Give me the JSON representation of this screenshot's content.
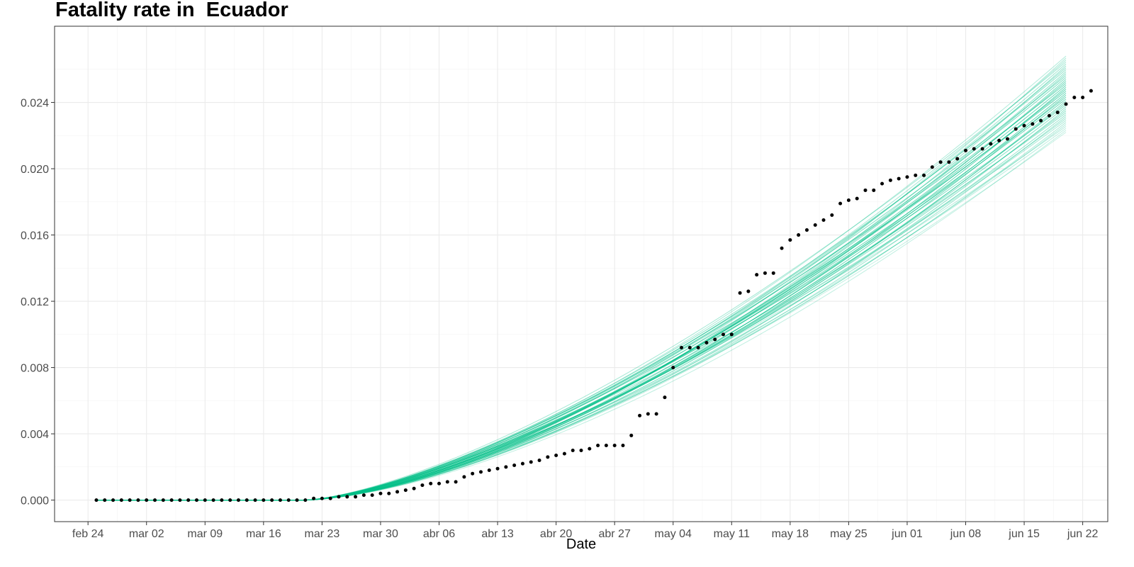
{
  "chart_data": {
    "type": "line",
    "title": "Fatality rate in  Ecuador",
    "xlabel": "Date",
    "ylabel": "",
    "x_domain": [
      "2020-02-20",
      "2020-06-25"
    ],
    "ylim": [
      -0.0013,
      0.0286
    ],
    "x_ticks": [
      {
        "date": "2020-02-24",
        "label": "feb 24"
      },
      {
        "date": "2020-03-02",
        "label": "mar 02"
      },
      {
        "date": "2020-03-09",
        "label": "mar 09"
      },
      {
        "date": "2020-03-16",
        "label": "mar 16"
      },
      {
        "date": "2020-03-23",
        "label": "mar 23"
      },
      {
        "date": "2020-03-30",
        "label": "mar 30"
      },
      {
        "date": "2020-04-06",
        "label": "abr 06"
      },
      {
        "date": "2020-04-13",
        "label": "abr 13"
      },
      {
        "date": "2020-04-20",
        "label": "abr 20"
      },
      {
        "date": "2020-04-27",
        "label": "abr 27"
      },
      {
        "date": "2020-05-04",
        "label": "may 04"
      },
      {
        "date": "2020-05-11",
        "label": "may 11"
      },
      {
        "date": "2020-05-18",
        "label": "may 18"
      },
      {
        "date": "2020-05-25",
        "label": "may 25"
      },
      {
        "date": "2020-06-01",
        "label": "jun 01"
      },
      {
        "date": "2020-06-08",
        "label": "jun 08"
      },
      {
        "date": "2020-06-15",
        "label": "jun 15"
      },
      {
        "date": "2020-06-22",
        "label": "jun 22"
      }
    ],
    "y_ticks": [
      {
        "value": 0.0,
        "label": "0.000"
      },
      {
        "value": 0.004,
        "label": "0.004"
      },
      {
        "value": 0.008,
        "label": "0.008"
      },
      {
        "value": 0.012,
        "label": "0.012"
      },
      {
        "value": 0.016,
        "label": "0.016"
      },
      {
        "value": 0.02,
        "label": "0.020"
      },
      {
        "value": 0.024,
        "label": "0.024"
      }
    ],
    "grid": true,
    "legend": "none",
    "colors": {
      "observed": "#000000",
      "simulated": "#00BF87"
    },
    "observed": {
      "start_date": "2020-02-25",
      "values": [
        0.0,
        0.0,
        0.0,
        0.0,
        0.0,
        0.0,
        0.0,
        0.0,
        0.0,
        0.0,
        0.0,
        0.0,
        0.0,
        0.0,
        0.0,
        0.0,
        0.0,
        0.0,
        0.0,
        0.0,
        0.0,
        0.0,
        0.0,
        0.0,
        0.0,
        0.0,
        0.0001,
        0.0001,
        0.0001,
        0.0002,
        0.0002,
        0.0002,
        0.0003,
        0.0003,
        0.0004,
        0.0004,
        0.0005,
        0.0006,
        0.0007,
        0.0009,
        0.001,
        0.001,
        0.0011,
        0.0011,
        0.0014,
        0.0016,
        0.0017,
        0.0018,
        0.0019,
        0.002,
        0.0021,
        0.0022,
        0.0023,
        0.0024,
        0.0026,
        0.0027,
        0.0028,
        0.003,
        0.003,
        0.0031,
        0.0033,
        0.0033,
        0.0033,
        0.0033,
        0.0039,
        0.0051,
        0.0052,
        0.0052,
        0.0062,
        0.008,
        0.0092,
        0.0092,
        0.0092,
        0.0095,
        0.0097,
        0.01,
        0.01,
        0.0125,
        0.0126,
        0.0136,
        0.0137,
        0.0137,
        0.0152,
        0.0157,
        0.016,
        0.0163,
        0.0166,
        0.0169,
        0.0172,
        0.0179,
        0.0181,
        0.0182,
        0.0187,
        0.0187,
        0.0191,
        0.0193,
        0.0194,
        0.0195,
        0.0196,
        0.0196,
        0.0201,
        0.0204,
        0.0204,
        0.0206,
        0.0211,
        0.0212,
        0.0212,
        0.0215,
        0.0217,
        0.0218,
        0.0224,
        0.0226,
        0.0227,
        0.0229,
        0.0232,
        0.0234,
        0.0239,
        0.0243,
        0.0243,
        0.0247
      ]
    },
    "simulated": {
      "count": 40,
      "start_date": "2020-02-25",
      "end_date": "2020-06-20",
      "onset_date": "2020-03-21",
      "final_range": [
        0.0222,
        0.0268
      ]
    }
  }
}
